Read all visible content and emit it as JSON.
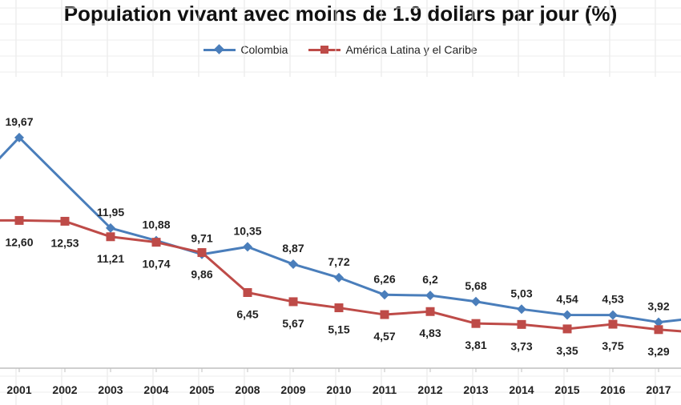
{
  "chart_data": {
    "type": "line",
    "title": "Population vivant avec moins de 1.9 dollars par jour (%)",
    "categories": [
      "2001",
      "2002",
      "2003",
      "2004",
      "2005",
      "2008",
      "2009",
      "2010",
      "2011",
      "2012",
      "2013",
      "2014",
      "2015",
      "2016",
      "2017"
    ],
    "xlabel": "",
    "ylabel": "",
    "ylim": [
      0,
      22
    ],
    "grid": true,
    "legend_position": "top",
    "series": [
      {
        "name": "Colombia",
        "color": "#4a7ebb",
        "marker": "diamond",
        "values": [
          19.67,
          15.8,
          11.95,
          10.88,
          9.71,
          10.35,
          8.87,
          7.72,
          6.26,
          6.2,
          5.68,
          5.03,
          4.54,
          4.53,
          3.92
        ],
        "labels": [
          "19,67",
          "",
          "11,95",
          "10,88",
          "9,71",
          "10,35",
          "8,87",
          "7,72",
          "6,26",
          "6,2",
          "5,68",
          "5,03",
          "4,54",
          "4,53",
          "3,92"
        ]
      },
      {
        "name": "América Latina y el Caribe",
        "color": "#be4b48",
        "marker": "square",
        "values": [
          12.6,
          12.53,
          11.21,
          10.74,
          9.86,
          6.45,
          5.67,
          5.15,
          4.57,
          4.83,
          3.81,
          3.73,
          3.35,
          3.75,
          3.29
        ],
        "labels": [
          "12,60",
          "12,53",
          "11,21",
          "10,74",
          "9,86",
          "6,45",
          "5,67",
          "5,15",
          "4,57",
          "4,83",
          "3,81",
          "3,73",
          "3,35",
          "3,75",
          "3,29"
        ]
      }
    ]
  }
}
